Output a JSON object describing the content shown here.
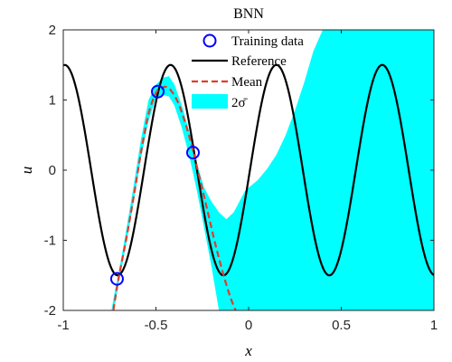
{
  "chart_data": {
    "type": "line",
    "title": "BNN",
    "xlabel": "x",
    "ylabel": "u",
    "xlim": [
      -1,
      1
    ],
    "ylim": [
      -2,
      2
    ],
    "xticks": [
      -1,
      -0.5,
      0,
      0.5,
      1
    ],
    "xtick_labels": [
      "-1",
      "-0.5",
      "0",
      "0.5",
      "1"
    ],
    "yticks": [
      -2,
      -1,
      0,
      1,
      2
    ],
    "ytick_labels": [
      "-2",
      "-1",
      "0",
      "1",
      "2"
    ],
    "grid": false,
    "legend_position": "top-right",
    "legend": {
      "training": "Training data",
      "reference": "Reference",
      "mean": "Mean",
      "band": "2σ̄"
    },
    "reference": {
      "function": "1.5*cos(11*(x-0.15))",
      "x": [
        -1,
        -0.9,
        -0.8,
        -0.73,
        -0.7,
        -0.6,
        -0.5,
        -0.44,
        -0.4,
        -0.3,
        -0.2,
        -0.15,
        -0.1,
        0,
        0.1,
        0.15,
        0.2,
        0.3,
        0.43,
        0.5,
        0.6,
        0.71,
        0.8,
        0.9,
        1
      ],
      "y": [
        1.49,
        0.63,
        -0.84,
        -1.5,
        -1.43,
        -0.37,
        1.01,
        1.5,
        1.29,
        -0.06,
        -1.33,
        -1.5,
        -1.24,
        0.11,
        1.35,
        1.5,
        1.28,
        -0.08,
        -1.5,
        -1.1,
        0.46,
        1.5,
        0.98,
        -0.7,
        -1.45
      ]
    },
    "mean": {
      "x": [
        -0.73,
        -0.7,
        -0.66,
        -0.62,
        -0.58,
        -0.54,
        -0.5,
        -0.47,
        -0.45,
        -0.42,
        -0.38,
        -0.34,
        -0.3,
        -0.26,
        -0.22,
        -0.18,
        -0.14,
        -0.1,
        -0.07
      ],
      "y": [
        -2.0,
        -1.52,
        -0.98,
        -0.38,
        0.26,
        0.8,
        1.1,
        1.16,
        1.19,
        1.14,
        0.96,
        0.66,
        0.28,
        -0.16,
        -0.6,
        -1.05,
        -1.45,
        -1.8,
        -2.0
      ]
    },
    "band": {
      "x": [
        -0.74,
        -0.72,
        -0.7,
        -0.66,
        -0.62,
        -0.58,
        -0.54,
        -0.5,
        -0.46,
        -0.43,
        -0.4,
        -0.36,
        -0.32,
        -0.28,
        -0.24,
        -0.2,
        -0.16,
        -0.12,
        -0.08,
        -0.05,
        -0.02,
        0,
        0.05,
        0.1,
        0.15,
        0.2,
        0.25,
        0.3,
        0.35,
        0.4,
        0.45,
        0.5,
        0.55,
        0.6,
        0.7,
        0.8,
        0.9,
        1
      ],
      "lower": [
        -2.0,
        -1.9,
        -1.6,
        -1.05,
        -0.45,
        0.18,
        0.7,
        1.03,
        1.07,
        1.05,
        0.92,
        0.6,
        0.2,
        -0.28,
        -0.82,
        -1.38,
        -2.0,
        -2.0,
        -2.0,
        -2.0,
        -2.0,
        -2.0,
        -2.0,
        -2.0,
        -2.0,
        -2.0,
        -2.0,
        -2.0,
        -2.0,
        -2.0,
        -2.0,
        -2.0,
        -2.0,
        -2.0,
        -2.0,
        -2.0,
        -2.0,
        -2.0
      ],
      "upper": [
        -2.0,
        -1.7,
        -1.45,
        -0.85,
        -0.22,
        0.45,
        1.0,
        1.22,
        1.32,
        1.34,
        1.22,
        0.92,
        0.55,
        0.1,
        -0.25,
        -0.45,
        -0.6,
        -0.7,
        -0.6,
        -0.45,
        -0.3,
        -0.25,
        -0.14,
        0.02,
        0.22,
        0.5,
        0.85,
        1.25,
        1.7,
        2.0,
        2.0,
        2.0,
        2.0,
        2.0,
        2.0,
        2.0,
        2.0,
        2.0
      ]
    },
    "training_data": {
      "x": [
        -0.71,
        -0.49,
        -0.3
      ],
      "y": [
        -1.55,
        1.12,
        0.25
      ]
    },
    "colors": {
      "reference": "#000000",
      "mean": "#e03c2d",
      "band": "#00ffff",
      "training": "#0000ff"
    }
  }
}
